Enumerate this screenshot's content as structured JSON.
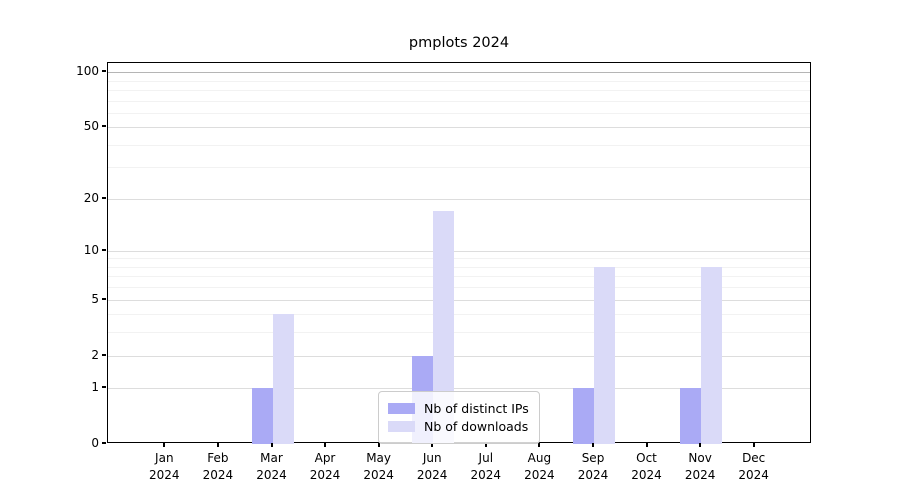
{
  "title": "pmplots 2024",
  "chart_data": {
    "type": "bar",
    "title": "pmplots 2024",
    "categories": [
      "Jan",
      "Feb",
      "Mar",
      "Apr",
      "May",
      "Jun",
      "Jul",
      "Aug",
      "Sep",
      "Oct",
      "Nov",
      "Dec"
    ],
    "category_year": "2024",
    "series": [
      {
        "name": "Nb of distinct IPs",
        "color": "#aaaaf5",
        "values": [
          0,
          0,
          1,
          0,
          0,
          2,
          0,
          0,
          1,
          0,
          1,
          0
        ]
      },
      {
        "name": "Nb of downloads",
        "color": "#dadaf8",
        "values": [
          0,
          0,
          4,
          0,
          0,
          17,
          0,
          0,
          8,
          0,
          8,
          0
        ]
      }
    ],
    "yscale": "log1p",
    "ylim": [
      0,
      112
    ],
    "yticks": [
      0,
      1,
      2,
      5,
      10,
      20,
      50,
      100
    ],
    "yticks_minor": [
      3,
      4,
      6,
      7,
      8,
      9,
      30,
      40,
      60,
      70,
      80,
      90
    ],
    "grid": "horizontal major and minor",
    "legend_position": "lower center inside plot",
    "xlabel": "",
    "ylabel": ""
  }
}
